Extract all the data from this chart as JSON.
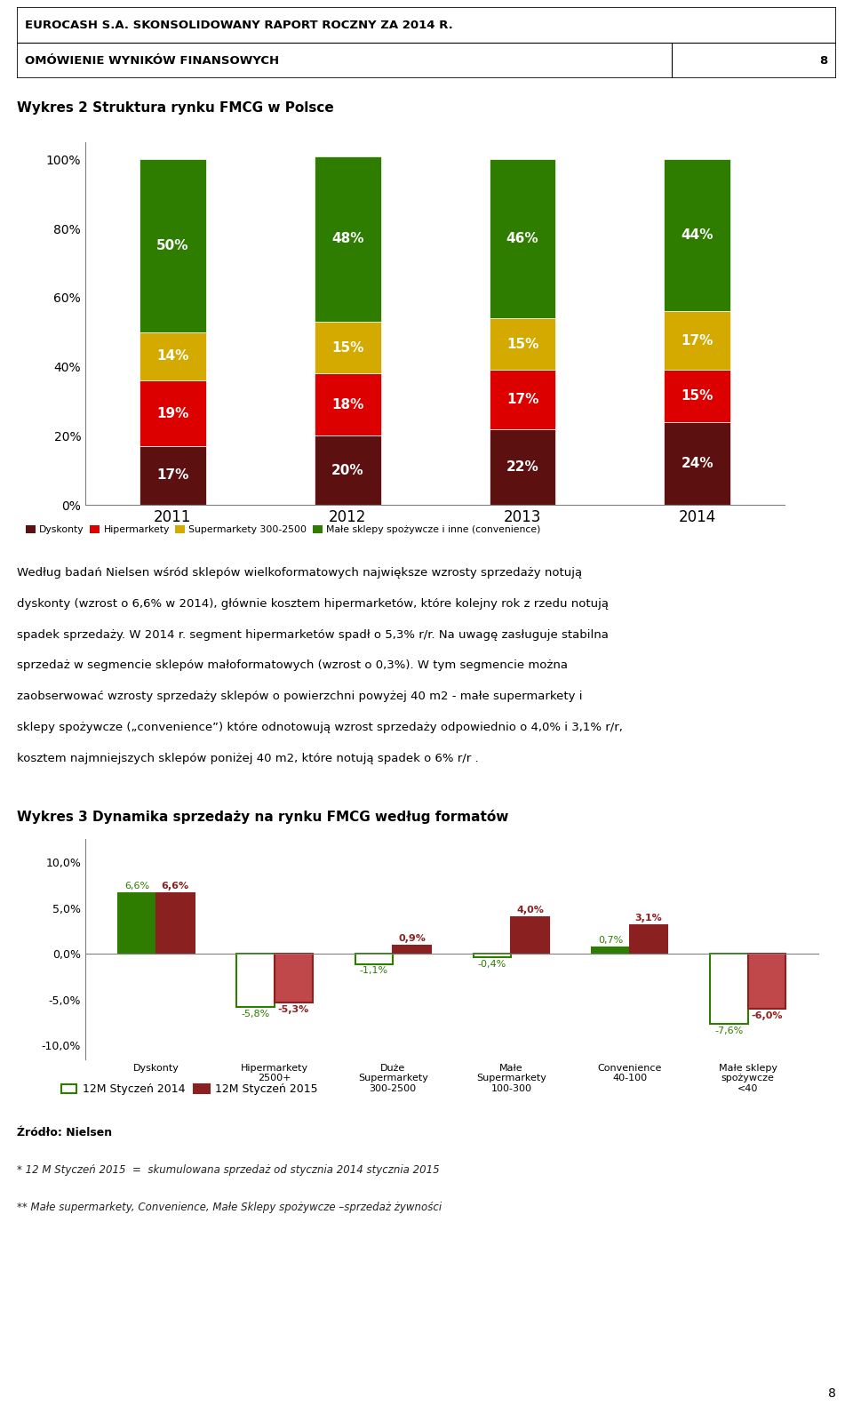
{
  "header1": "EUROCASH S.A. SKONSOLIDOWANY RAPORT ROCZNY ZA 2014 R.",
  "header2": "OMÓWIENIE WYNIKÓW FINANSOWYCH",
  "header2_num": "8",
  "chart1_title": "Wykres 2 Struktura rynku FMCG w Polsce",
  "chart1_years": [
    "2011",
    "2012",
    "2013",
    "2014"
  ],
  "chart1_dyskonty": [
    17,
    20,
    22,
    24
  ],
  "chart1_hipermarkety": [
    19,
    18,
    17,
    15
  ],
  "chart1_supermarkety": [
    14,
    15,
    15,
    17
  ],
  "chart1_male": [
    50,
    48,
    46,
    44
  ],
  "chart1_colors": [
    "#5C1010",
    "#DD0000",
    "#D4AA00",
    "#2E7D00"
  ],
  "chart1_legend_labels": [
    "Dyskonty",
    "Hipermarkety",
    "Supermarkety 300-2500",
    "Małe sklepy spożywcze i inne (convenience)"
  ],
  "body_line1": "Według badań Nielsen wśród sklepów wielkoformatowych największe wzrosty sprzedaży notują",
  "body_line2": "dyskonty (wzrost o 6,6% w 2014), głównie kosztem hipermarketów, które kolejny rok z rzedu notują",
  "body_line3": "spadek sprzedaży. W 2014 r. segment hipermarketów spadł o 5,3% r/r. Na uwagę zasługuje stabilna",
  "body_line4": "sprzedaż w segmencie sklepów małoformatowych (wzrost o 0,3%). W tym segmencie można",
  "body_line5": "zaobserwować wzrosty sprzedaży sklepów o powierzchni powyżej 40 m2 - małe supermarkety i",
  "body_line6": "sklepy spożywcze („convenience”) które odnotowują wzrost sprzedaży odpowiednio o 4,0% i 3,1% r/r,",
  "body_line7": "kosztem najmniejszych sklepów poniżej 40 m2, które notują spadek o 6% r/r .",
  "chart2_title": "Wykres 3 Dynamika sprzedaży na rynku FMCG według formatów",
  "chart2_categories": [
    "Dyskonty",
    "Hipermarkety\n2500+",
    "Duże\nSupermarkety\n300-2500",
    "Małe\nSupermarkety\n100-300",
    "Convenience\n40-100",
    "Małe sklepy\nspożywcze\n<40"
  ],
  "chart2_series1": [
    6.6,
    -5.8,
    -1.1,
    -0.4,
    0.7,
    -7.6
  ],
  "chart2_series2": [
    6.6,
    -5.3,
    0.9,
    4.0,
    3.1,
    -6.0
  ],
  "chart2_series1_labels": [
    "6,6%",
    "-5,8%",
    "-1,1%",
    "-0,4%",
    "0,7%",
    "-7,6%"
  ],
  "chart2_series2_labels": [
    "6,6%",
    "-5,3%",
    "0,9%",
    "4,0%",
    "3,1%",
    "-6,0%"
  ],
  "chart2_green": "#2E7D00",
  "chart2_red": "#8B2020",
  "chart2_red_light": "#C0474A",
  "legend2_label1": "12M Styczeń 2014",
  "legend2_label2": "12M Styczeń 2015",
  "source_text": "Źródło: Nielsen",
  "footnote1": "* 12 M Styczeń 2015  =  skumulowana sprzedaż od stycznia 2014 stycznia 2015",
  "footnote2": "** Małe supermarkety, Convenience, Małe Sklepy spożywcze –sprzedaż żywności",
  "page_num": "8"
}
